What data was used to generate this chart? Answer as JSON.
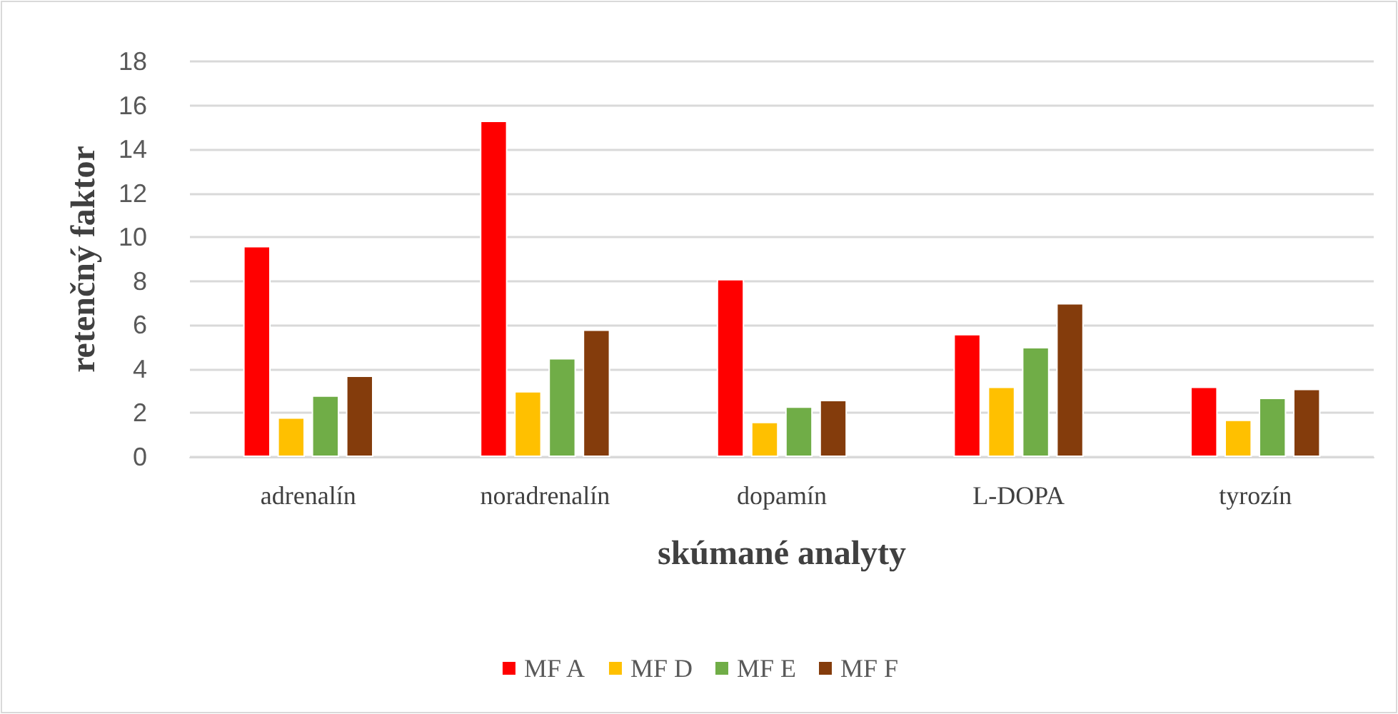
{
  "chart_data": {
    "type": "bar",
    "xlabel": "skúmané analyty",
    "ylabel": "retenčný faktor",
    "categories": [
      "adrenalín",
      "noradrenalín",
      "dopamín",
      "L-DOPA",
      "tyrozín"
    ],
    "series": [
      {
        "name": "MF A",
        "color": "#ff0000",
        "values": [
          9.6,
          15.3,
          8.1,
          5.6,
          3.2
        ]
      },
      {
        "name": "MF D",
        "color": "#ffc000",
        "values": [
          1.8,
          3.0,
          1.6,
          3.2,
          1.7
        ]
      },
      {
        "name": "MF E",
        "color": "#70ad47",
        "values": [
          2.8,
          4.5,
          2.3,
          5.0,
          2.7
        ]
      },
      {
        "name": "MF F",
        "color": "#843c0c",
        "values": [
          3.7,
          5.8,
          2.6,
          7.0,
          3.1
        ]
      }
    ],
    "ylim": [
      0,
      18
    ],
    "yticks": [
      0,
      2,
      4,
      6,
      8,
      10,
      12,
      14,
      16,
      18
    ],
    "grid": "y",
    "legend": "bottom"
  }
}
